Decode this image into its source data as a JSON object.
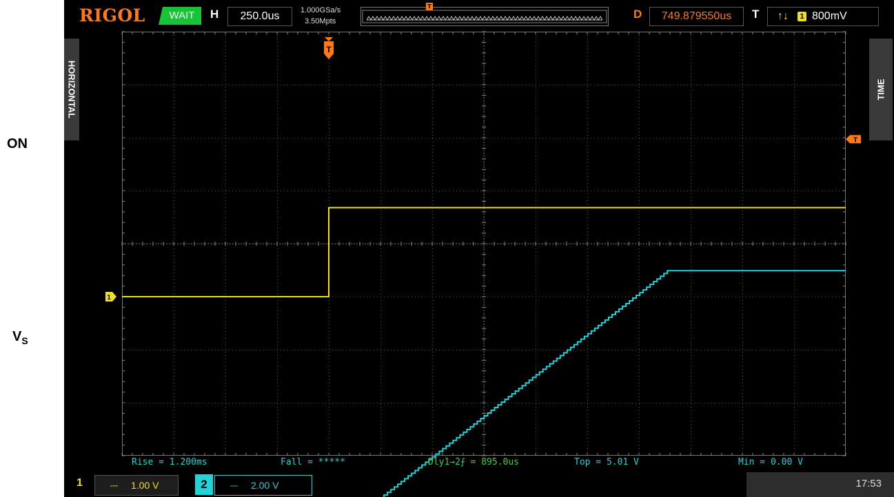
{
  "labels": {
    "on": "ON",
    "vs_main": "V",
    "vs_sub": "S"
  },
  "header": {
    "brand": "RIGOL",
    "run_status": "WAIT",
    "horizontal_label": "H",
    "timebase": "250.0us",
    "sample_rate": "1.000GSa/s",
    "memory_depth": "3.50Mpts",
    "delay_label": "D",
    "delay_value": "749.879550us",
    "trigger_label": "T",
    "trigger_slope": "↑↓",
    "trigger_source": "1",
    "trigger_level": "800mV"
  },
  "side_tabs": {
    "left": "HORIZONTAL",
    "right": "TIME"
  },
  "markers": {
    "trigger": "T",
    "ch1": "1",
    "ch2": "2"
  },
  "measurements": {
    "rise": "Rise = 1.200ms",
    "fall": "Fall = *****",
    "delay": "Dly1→2⨍  = 895.0us",
    "top": "Top = 5.01 V",
    "min": "Min = 0.00 V"
  },
  "footer": {
    "ch1_number": "1",
    "ch1_coupling": "⎓",
    "ch1_scale": "1.00 V",
    "ch2_number": "2",
    "ch2_coupling": "⎓",
    "ch2_scale": "2.00 V",
    "clock": "17:53"
  },
  "colors": {
    "ch1": "#f0e020",
    "ch2": "#1fd3d8",
    "trigger": "#ff7a14",
    "measurement": "#37d34a",
    "status_wait": "#17c437"
  },
  "chart_data": {
    "type": "line",
    "grid": {
      "divisions_x": 14,
      "divisions_y": 8
    },
    "series": [
      {
        "channel": "1",
        "x_div": [
          0,
          4.0,
          4.0,
          14
        ],
        "y_div": [
          -1.0,
          -1.0,
          0.68,
          0.68
        ]
      },
      {
        "channel": "2",
        "x_div": [
          0,
          4.1,
          4.8,
          10.55,
          14
        ],
        "y_div": [
          -5.0,
          -5.0,
          -4.95,
          -0.51,
          -0.51
        ]
      }
    ]
  }
}
